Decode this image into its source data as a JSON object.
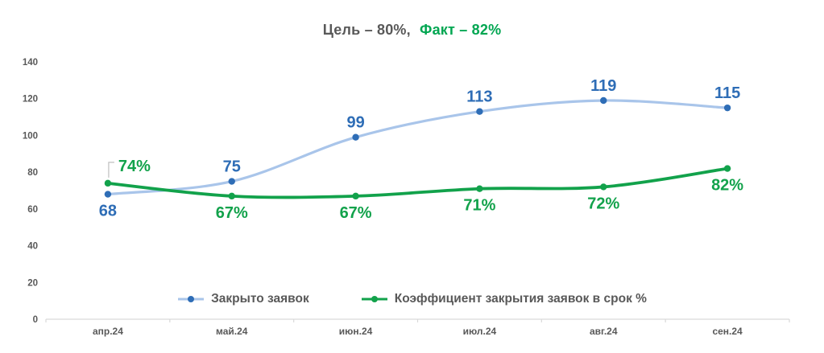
{
  "title": {
    "goal": "Цель – 80%,",
    "fact": "Факт – 82%"
  },
  "colors": {
    "title_goal": "#595959",
    "title_fact": "#00a651",
    "axis_line": "#d9d9d9",
    "axis_text": "#595959",
    "legend_text": "#595959",
    "callout_line": "#bfbfbf",
    "background": "#ffffff"
  },
  "chart_data": {
    "type": "line",
    "title": "Цель – 80%, Факт – 82%",
    "categories": [
      "апр.24",
      "май.24",
      "июн.24",
      "июл.24",
      "авг.24",
      "сен.24"
    ],
    "series": [
      {
        "name": "Закрыто заявок",
        "values": [
          68,
          75,
          99,
          113,
          119,
          115
        ],
        "labels": [
          "68",
          "75",
          "99",
          "113",
          "119",
          "115"
        ],
        "label_positions": [
          "below",
          "above",
          "above",
          "above",
          "above",
          "above"
        ],
        "line_color": "#a9c5ea",
        "marker_color": "#2e6db6",
        "label_color": "#2e6db6"
      },
      {
        "name": "Коэффициент закрытия заявок в срок %",
        "values": [
          74,
          67,
          67,
          71,
          72,
          82
        ],
        "labels": [
          "74%",
          "67%",
          "67%",
          "71%",
          "72%",
          "82%"
        ],
        "label_positions": [
          "callout",
          "below",
          "below",
          "below",
          "below",
          "below"
        ],
        "line_color": "#12a24b",
        "marker_color": "#12a24b",
        "label_color": "#12a24b"
      }
    ],
    "ylim": [
      0,
      140
    ],
    "yticks": [
      0,
      20,
      40,
      60,
      80,
      100,
      120,
      140
    ],
    "grid": false,
    "legend_position": "bottom-inside",
    "smoothed_lines": true
  }
}
